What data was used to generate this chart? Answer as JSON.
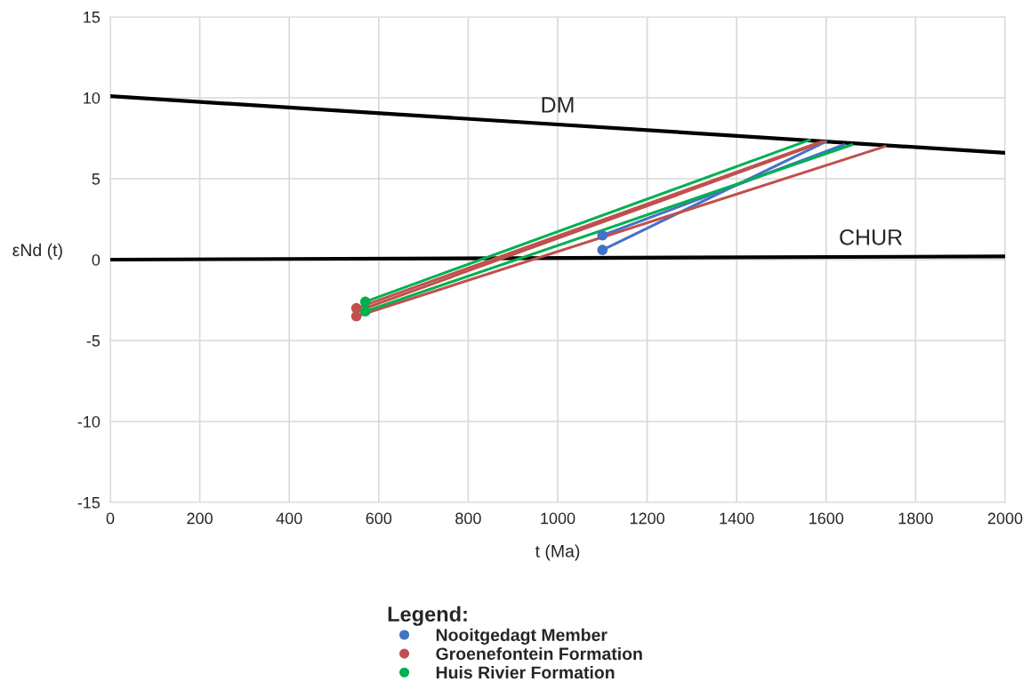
{
  "chart_data": {
    "type": "line",
    "xlabel": "t (Ma)",
    "ylabel": "εNd (t)",
    "legend_title": "Legend:",
    "legend": "bottom",
    "grid": true,
    "xlim": [
      0,
      2000
    ],
    "xticks": [
      0,
      200,
      400,
      600,
      800,
      1000,
      1200,
      1400,
      1600,
      1800,
      2000
    ],
    "ylim": [
      -15,
      15
    ],
    "yticks": [
      -15,
      -10,
      -5,
      0,
      5,
      10,
      15
    ],
    "series": [
      {
        "name": "DM",
        "color": "#000000",
        "x": [
          0,
          2000
        ],
        "values": [
          10.1,
          6.6
        ]
      },
      {
        "name": "CHUR",
        "color": "#000000",
        "x": [
          0,
          2000
        ],
        "values": [
          0.0,
          0.2
        ]
      },
      {
        "color": "#4472c4",
        "x": [
          1100,
          1640
        ],
        "values": [
          1.5,
          7.1
        ]
      },
      {
        "color": "#4472c4",
        "x": [
          1100,
          1600
        ],
        "values": [
          0.6,
          7.3
        ]
      },
      {
        "color": "#c0504d",
        "x": [
          550,
          1596
        ],
        "values": [
          -3.2,
          7.3
        ]
      },
      {
        "color": "#c0504d",
        "x": [
          550,
          1590
        ],
        "values": [
          -3.0,
          7.3
        ]
      },
      {
        "color": "#c0504d",
        "x": [
          550,
          1732
        ],
        "values": [
          -3.5,
          7.0
        ]
      },
      {
        "color": "#00b050",
        "x": [
          570,
          1563
        ],
        "values": [
          -2.6,
          7.4
        ]
      },
      {
        "color": "#00b050",
        "x": [
          570,
          1658
        ],
        "values": [
          -3.2,
          7.1
        ]
      },
      {
        "name": "Nooitgedagt Member",
        "type": "scatter",
        "color": "#4472c4",
        "x": [
          1100,
          1100
        ],
        "values": [
          1.5,
          0.6
        ]
      },
      {
        "name": "Groenefontein Formation",
        "type": "scatter",
        "color": "#c0504d",
        "x": [
          550,
          550
        ],
        "values": [
          -3.0,
          -3.5
        ]
      },
      {
        "name": "Huis Rivier Formation",
        "type": "scatter",
        "color": "#00b050",
        "x": [
          570,
          570
        ],
        "values": [
          -2.6,
          -3.2
        ]
      }
    ]
  }
}
